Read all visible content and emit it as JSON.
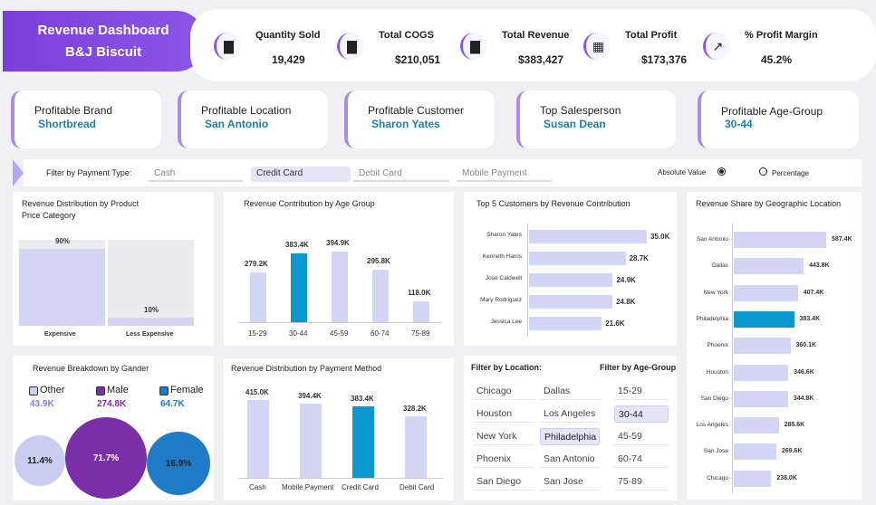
{
  "header": {
    "title1": "Revenue Dashboard",
    "title2": "B&J Biscuit"
  },
  "kpis": [
    {
      "label": "Quantity Sold",
      "value": "19,429",
      "icon": "bar-chart-icon"
    },
    {
      "label": "Total COGS",
      "value": "$210,051",
      "icon": "bar-chart-icon"
    },
    {
      "label": "Total Revenue",
      "value": "$383,427",
      "icon": "bar-chart-icon"
    },
    {
      "label": "Total Profit",
      "value": "$173,376",
      "icon": "boxes-icon"
    },
    {
      "label": "% Profit Margin",
      "value": "45.2%",
      "icon": "trend-line-icon"
    }
  ],
  "profitable": [
    {
      "label": "Profitable Brand",
      "value": "Shortbread"
    },
    {
      "label": "Profitable Location",
      "value": "San Antonio"
    },
    {
      "label": "Profitable Customer",
      "value": "Sharon Yates"
    },
    {
      "label": "Top Salesperson",
      "value": "Susan Dean"
    },
    {
      "label": "Profitable Age-Group",
      "value": "30-44"
    }
  ],
  "filter": {
    "label": "Filter by Payment Type:",
    "options": [
      "Cash",
      "Credit Card",
      "Debit Card",
      "Mobile Payment"
    ],
    "selected": "Credit Card",
    "radio1": "Absolute Value",
    "radio2": "Percentage",
    "radio_selected": "Absolute Value"
  },
  "price_panel": {
    "title1": "Revenue Distribution by Product",
    "title2": "Price Category",
    "chart_data": {
      "type": "bar",
      "categories": [
        "Expensive",
        "Less Expensive"
      ],
      "values": [
        90,
        10
      ],
      "labels": [
        "90%",
        "10%"
      ]
    }
  },
  "age_panel": {
    "title": "Revenue Contribution by Age Group",
    "chart_data": {
      "type": "bar",
      "categories": [
        "15-29",
        "30-44",
        "45-59",
        "60-74",
        "75-89"
      ],
      "values": [
        279.2,
        383.4,
        394.9,
        295.8,
        118.0
      ],
      "labels": [
        "279.2K",
        "383.4K",
        "394.9K",
        "295.8K",
        "118.0K"
      ],
      "highlight": "30-44"
    }
  },
  "customers_panel": {
    "title": "Top 5 Customers by Revenue Contribution",
    "chart_data": {
      "type": "bar",
      "categories": [
        "Sharon Yates",
        "Kenneth Harris",
        "Jose Caldwell",
        "Mary Rodriguez",
        "Jessica Lee"
      ],
      "values": [
        35.0,
        28.7,
        24.9,
        24.8,
        21.6
      ],
      "labels": [
        "35.0K",
        "28.7K",
        "24.9K",
        "24.8K",
        "21.6K"
      ]
    }
  },
  "geo_panel": {
    "title": "Revenue Share by Geographic Location",
    "chart_data": {
      "type": "bar",
      "categories": [
        "San Antonio",
        "Dallas",
        "New York",
        "Philadelphia",
        "Phoenix",
        "Houston",
        "San Diego",
        "Los Angeles",
        "San Jose",
        "Chicago"
      ],
      "values": [
        587.4,
        443.8,
        407.4,
        383.4,
        360.1,
        346.6,
        344.8,
        285.6,
        269.6,
        238.0
      ],
      "labels": [
        "587.4K",
        "443.8K",
        "407.4K",
        "383.4K",
        "360.1K",
        "346.6K",
        "344.8K",
        "285.6K",
        "269.6K",
        "238.0K"
      ],
      "highlight": "Philadelphia"
    }
  },
  "gender_panel": {
    "title": "Revenue Breakdown by Gander",
    "legend": [
      {
        "name": "Other",
        "value": "43.9K",
        "color": "#c9cdf2"
      },
      {
        "name": "Male",
        "value": "274.8K",
        "color": "#7a2fa8"
      },
      {
        "name": "Female",
        "value": "64.7K",
        "color": "#1f7ac7"
      }
    ],
    "chart_data": {
      "type": "pie",
      "categories": [
        "Other",
        "Male",
        "Female"
      ],
      "values": [
        11.4,
        71.7,
        16.9
      ],
      "labels": [
        "11.4%",
        "71.7%",
        "16.9%"
      ]
    }
  },
  "payment_panel": {
    "title": "Revenue Distribution by Payment Method",
    "chart_data": {
      "type": "bar",
      "categories": [
        "Cash",
        "Mobile Payment",
        "Credit Card",
        "Debit Card"
      ],
      "values": [
        415.0,
        394.4,
        383.4,
        328.2
      ],
      "labels": [
        "415.0K",
        "394.4K",
        "383.4K",
        "328.2K"
      ],
      "highlight": "Credit Card"
    }
  },
  "location_filter": {
    "title": "Filter by Location:",
    "col1": [
      "Chicago",
      "Houston",
      "New York",
      "Phoenix",
      "San Diego"
    ],
    "col2": [
      "Dallas",
      "Los Angeles",
      "Philadelphia",
      "San Antonio",
      "San Jose"
    ],
    "selected": "Philadelphia"
  },
  "age_filter": {
    "title": "Filter by Age-Group",
    "items": [
      "15-29",
      "30-44",
      "45-59",
      "60-74",
      "75-89"
    ],
    "selected": "30-44"
  }
}
